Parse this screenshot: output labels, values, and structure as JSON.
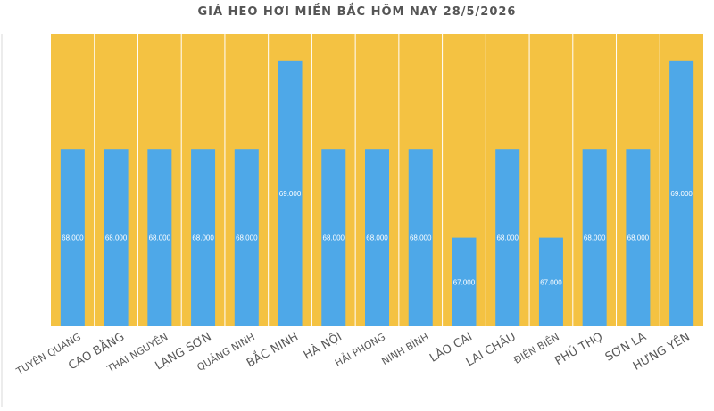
{
  "chart_data": {
    "type": "bar",
    "title": "GIÁ HEO HƠI MIỀN BẮC HÔM NAY 28/5/2026",
    "categories": [
      "TUYÊN QUANG",
      "CAO BẰNG",
      "THÁI NGUYÊN",
      "LẠNG SƠN",
      "QUẢNG NINH",
      "BẮC NINH",
      "HÀ NỘI",
      "HẢI PHÒNG",
      "NINH BÌNH",
      "LÀO CAI",
      "LAI CHÂU",
      "ĐIỆN BIÊN",
      "PHÚ THỌ",
      "SƠN LA",
      "HƯNG YÊN"
    ],
    "values": [
      68000,
      68000,
      68000,
      68000,
      68000,
      69000,
      68000,
      68000,
      68000,
      67000,
      68000,
      67000,
      68000,
      68000,
      69000
    ],
    "value_labels": [
      "68.000",
      "68.000",
      "68.000",
      "68.000",
      "68.000",
      "69.000",
      "68.000",
      "68.000",
      "68.000",
      "67.000",
      "68.000",
      "67.000",
      "68.000",
      "68.000",
      "69.000"
    ],
    "ylim": [
      66000,
      69300
    ],
    "xlabel": "",
    "ylabel": "",
    "grid": false,
    "colors": {
      "plot_background": "#F4C242",
      "bar": "#4EA8E8",
      "separator": "#ffffff",
      "title": "#555555",
      "category_label": "#595959",
      "value_label": "#ffffff"
    }
  }
}
